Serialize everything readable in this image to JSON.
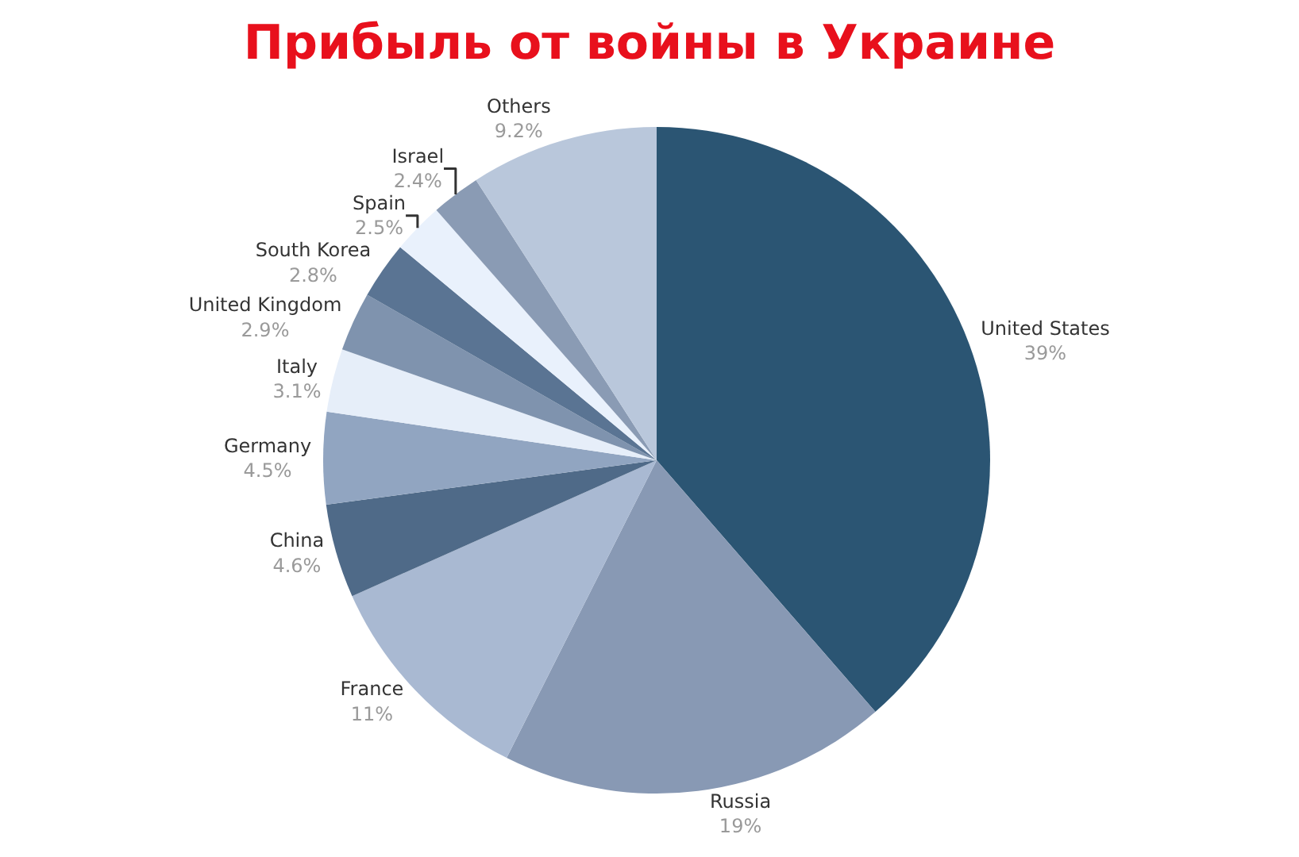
{
  "chart_data": {
    "type": "pie",
    "title": "Прибыль от войны в Украине",
    "categories": [
      "United States",
      "Russia",
      "France",
      "China",
      "Germany",
      "Italy",
      "United Kingdom",
      "South Korea",
      "Spain",
      "Israel",
      "Others"
    ],
    "values": [
      39,
      19,
      11,
      4.6,
      4.5,
      3.1,
      2.9,
      2.8,
      2.5,
      2.4,
      9.2
    ],
    "value_labels": [
      "39%",
      "19%",
      "11%",
      "4.6%",
      "4.5%",
      "3.1%",
      "2.9%",
      "2.8%",
      "2.5%",
      "2.4%",
      "9.2%"
    ],
    "colors": [
      "#2b5573",
      "#8899b4",
      "#a9b9d2",
      "#4f6a88",
      "#91a5c1",
      "#e6eef9",
      "#7f93ae",
      "#5a7493",
      "#e9f1fc",
      "#8a9bb4",
      "#b9c7db"
    ],
    "legend": false
  }
}
